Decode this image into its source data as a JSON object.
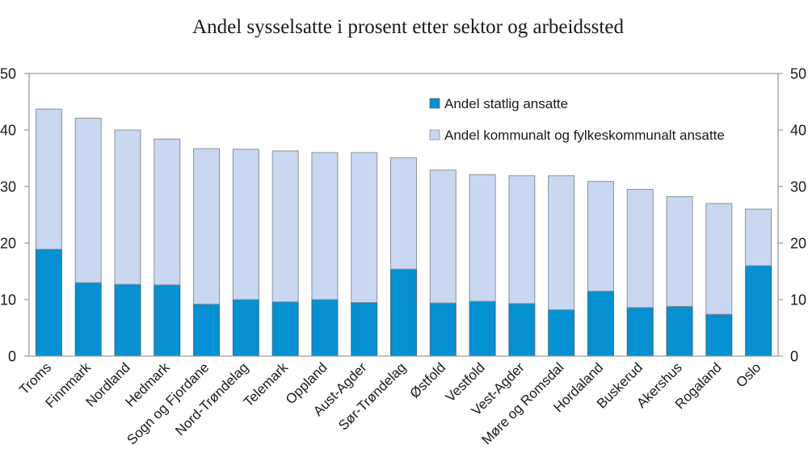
{
  "chart_data": {
    "type": "bar",
    "stacked": true,
    "title": "Andel sysselsatte i prosent etter sektor og arbeidssted",
    "xlabel": "",
    "ylabel": "",
    "ylim": [
      0,
      50
    ],
    "yticks": [
      0,
      10,
      20,
      30,
      40,
      50
    ],
    "ytick_labels": [
      "0",
      "10",
      "20",
      "30",
      "40",
      "50"
    ],
    "secondary_y_axis": true,
    "grid": false,
    "legend_position": "top-right",
    "categories": [
      "Troms",
      "Finnmark",
      "Nordland",
      "Hedmark",
      "Sogn og Fjordane",
      "Nord-Trøndelag",
      "Telemark",
      "Oppland",
      "Aust-Agder",
      "Sør-Trøndelag",
      "Østfold",
      "Vestfold",
      "Vest-Agder",
      "Møre og Romsdal",
      "Hordaland",
      "Buskerud",
      "Akershus",
      "Rogaland",
      "Oslo"
    ],
    "series": [
      {
        "name": "Andel statlig ansatte",
        "color": "#0591d1",
        "values": [
          18.9,
          13.0,
          12.7,
          12.6,
          9.2,
          10.0,
          9.6,
          10.0,
          9.5,
          15.4,
          9.4,
          9.7,
          9.3,
          8.2,
          11.5,
          8.6,
          8.8,
          7.4,
          16.0
        ]
      },
      {
        "name": "Andel kommunalt og fylkeskommunalt ansatte",
        "color": "#c9d8f0",
        "values": [
          24.8,
          29.1,
          27.3,
          25.8,
          27.5,
          26.6,
          26.7,
          26.0,
          26.5,
          19.7,
          23.5,
          22.4,
          22.6,
          23.7,
          19.4,
          20.9,
          19.4,
          19.6,
          10.0
        ]
      }
    ]
  },
  "colors": {
    "bar_outline": "#8a9099",
    "axis": "#9a9a9a",
    "text": "#1a1a1a"
  }
}
